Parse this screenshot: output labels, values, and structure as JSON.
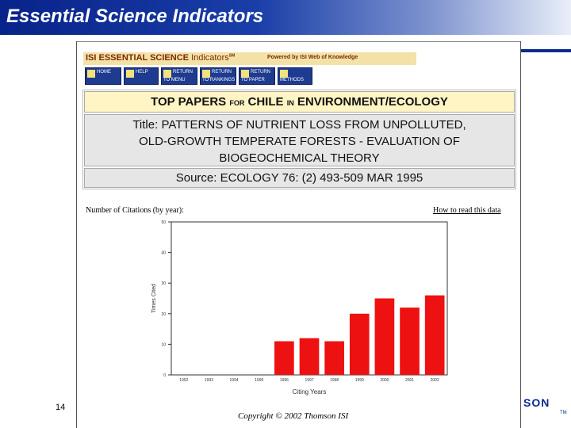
{
  "slide": {
    "title": "Essential Science Indicators",
    "number": "14",
    "brand": "SON",
    "brand_mark": "TM"
  },
  "isi": {
    "banner_main": "ISI ESSENTIAL SCIENCE",
    "banner_sub": "Indicators",
    "banner_sm": "SM",
    "powered_by": "Powered by ISI Web of Knowledge",
    "nav": [
      "HOME",
      "HELP",
      "RETURN TO MENU",
      "RETURN TO RANKINGS",
      "RETURN TO PAPER",
      "METHODS"
    ]
  },
  "header": {
    "top_a": "TOP PAPERS",
    "for": "FOR",
    "country": "CHILE",
    "in": "IN",
    "field": "ENVIRONMENT/ECOLOGY",
    "title_lines": [
      "Title: PATTERNS OF NUTRIENT LOSS FROM UNPOLLUTED,",
      "OLD-GROWTH TEMPERATE FORESTS - EVALUATION OF",
      "BIOGEOCHEMICAL THEORY"
    ],
    "source": "Source: ECOLOGY 76: (2) 493-509 MAR 1995"
  },
  "citations_label": "Number of Citations (by year):",
  "how_to_read": "How to read this data",
  "copyright": "Copyright © 2002 Thomson ISI",
  "colors": {
    "bar": "#ee1111",
    "title_bar": "#0d2b8e"
  },
  "chart_data": {
    "type": "bar",
    "categories": [
      "1992",
      "1993",
      "1994",
      "1995",
      "1996",
      "1997",
      "1998",
      "1999",
      "2000",
      "2001",
      "2002"
    ],
    "values": [
      0,
      0,
      0,
      0,
      11,
      12,
      11,
      20,
      25,
      22,
      26
    ],
    "xlabel": "Citing Years",
    "ylabel": "Times Cited",
    "ylim": [
      0,
      50
    ],
    "yticks": [
      "0",
      "10",
      "20",
      "30",
      "40",
      "50"
    ],
    "grid": false
  }
}
